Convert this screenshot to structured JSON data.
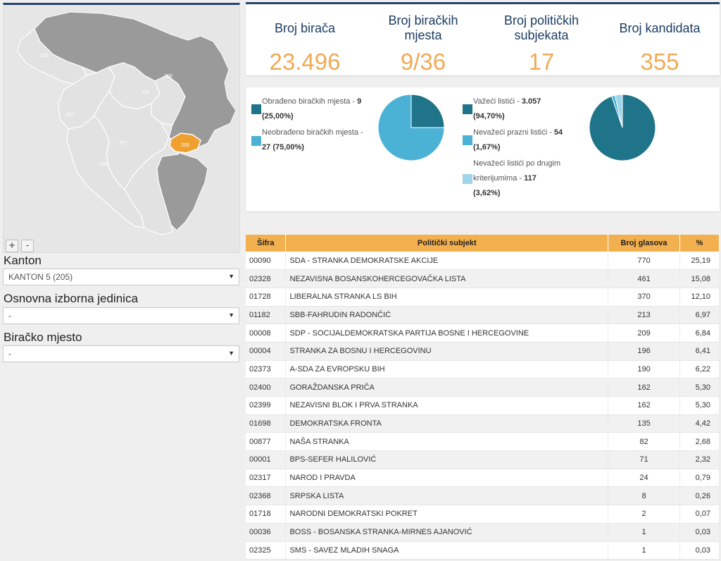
{
  "map": {
    "zoom_in_label": "+",
    "zoom_out_label": "-",
    "region_labels": [
      {
        "id": "r203",
        "label": "203"
      },
      {
        "id": "r202",
        "label": "202"
      },
      {
        "id": "r204",
        "label": "204"
      },
      {
        "id": "r209",
        "label": "209"
      },
      {
        "id": "r207",
        "label": "207"
      },
      {
        "id": "r206",
        "label": "206"
      },
      {
        "id": "r205",
        "label": "205"
      }
    ],
    "colors": {
      "region": "#e2e2e2",
      "other_entity": "#9a9a9a",
      "selected": "#f0a030",
      "border": "#ffffff"
    }
  },
  "filters": {
    "kanton_label": "Kanton",
    "kanton_value": "KANTON 5 (205)",
    "oij_label": "Osnovna izborna jedinica",
    "oij_value": "-",
    "bm_label": "Biračko mjesto",
    "bm_value": "-",
    "dropdown_icon": "▼"
  },
  "stats": [
    {
      "label": "Broj birača",
      "value": "23.496"
    },
    {
      "label": "Broj biračkih mjesta",
      "value": "9/36"
    },
    {
      "label": "Broj političkih subjekata",
      "value": "17"
    },
    {
      "label": "Broj kandidata",
      "value": "355"
    }
  ],
  "pie1": {
    "legend": [
      {
        "text": "Obrađeno biračkih mjesta - ",
        "value": "9",
        "pct": "(25,00%)",
        "color": "#20748a"
      },
      {
        "text": "Neobrađeno biračkih mjesta - ",
        "value": "27",
        "pct": "(75,00%)",
        "color": "#4bb2d5"
      }
    ],
    "fractions": [
      0.25,
      0.75
    ]
  },
  "pie2": {
    "legend": [
      {
        "text": "Važeći listići - ",
        "value": "3.057",
        "pct": "(94,70%)",
        "color": "#20748a"
      },
      {
        "text": "Nevažeći prazni listići - ",
        "value": "54",
        "pct": "(1,67%)",
        "color": "#4bb2d5"
      },
      {
        "text_line1": "Nevažeći listići po drugim",
        "text": "kriterijumima - ",
        "value": "117",
        "pct": "(3,62%)",
        "color": "#9fd4ea"
      }
    ],
    "fractions": [
      0.947,
      0.0167,
      0.0362
    ]
  },
  "table": {
    "headers": {
      "code": "Šifra",
      "party": "Politički subjekt",
      "votes": "Broj glasova",
      "pct": "%"
    },
    "rows": [
      {
        "code": "00090",
        "party": "SDA - STRANKA DEMOKRATSKE AKCIJE",
        "votes": "770",
        "pct": "25,19"
      },
      {
        "code": "02328",
        "party": "NEZAVISNA BOSANSKOHERCEGOVAČKA LISTA",
        "votes": "461",
        "pct": "15,08"
      },
      {
        "code": "01728",
        "party": "LIBERALNA STRANKA LS BIH",
        "votes": "370",
        "pct": "12,10"
      },
      {
        "code": "01182",
        "party": "SBB-FAHRUDIN RADONČIĆ",
        "votes": "213",
        "pct": "6,97"
      },
      {
        "code": "00008",
        "party": "SDP - SOCIJALDEMOKRATSKA PARTIJA BOSNE I HERCEGOVINE",
        "votes": "209",
        "pct": "6,84"
      },
      {
        "code": "00004",
        "party": "STRANKA ZA BOSNU I HERCEGOVINU",
        "votes": "196",
        "pct": "6,41"
      },
      {
        "code": "02373",
        "party": "A-SDA ZA EVROPSKU BIH",
        "votes": "190",
        "pct": "6,22"
      },
      {
        "code": "02400",
        "party": "GORAŽDANSKA PRIČA",
        "votes": "162",
        "pct": "5,30"
      },
      {
        "code": "02399",
        "party": "NEZAVISNI BLOK I PRVA STRANKA",
        "votes": "162",
        "pct": "5,30"
      },
      {
        "code": "01698",
        "party": "DEMOKRATSKA FRONTA",
        "votes": "135",
        "pct": "4,42"
      },
      {
        "code": "00877",
        "party": "NAŠA STRANKA",
        "votes": "82",
        "pct": "2,68"
      },
      {
        "code": "00001",
        "party": "BPS-SEFER HALILOVIĆ",
        "votes": "71",
        "pct": "2,32"
      },
      {
        "code": "02317",
        "party": "NAROD I PRAVDA",
        "votes": "24",
        "pct": "0,79"
      },
      {
        "code": "02368",
        "party": "SRPSKA LISTA",
        "votes": "8",
        "pct": "0,26"
      },
      {
        "code": "01718",
        "party": "NARODNI DEMOKRATSKI POKRET",
        "votes": "2",
        "pct": "0,07"
      },
      {
        "code": "00036",
        "party": "BOSS - BOSANSKA STRANKA-MIRNES AJANOVIĆ",
        "votes": "1",
        "pct": "0,03"
      },
      {
        "code": "02325",
        "party": "SMS - SAVEZ MLADIH SNAGA",
        "votes": "1",
        "pct": "0,03"
      }
    ]
  }
}
